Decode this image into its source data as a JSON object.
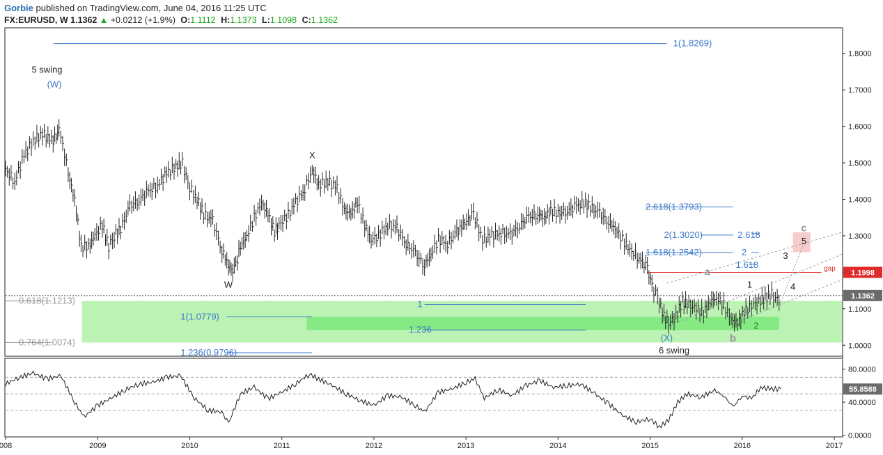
{
  "header": {
    "author": "Gorbie",
    "published": "published on TradingView.com, June 04, 2016 11:25 UTC",
    "symbol": "FX:EURUSD, W",
    "last": "1.1362",
    "change": "+0.0212 (+1.9%)",
    "open_label": "O:",
    "open": "1.1112",
    "high_label": "H:",
    "high": "1.1373",
    "low_label": "L:",
    "low": "1.1098",
    "close_label": "C:",
    "close": "1.1362"
  },
  "colors": {
    "blue_label": "#3a78c9",
    "green_zone": "#7ee87e",
    "price_badge": "#6b6b6b",
    "red_level": "#e02b2b"
  },
  "chart_data": [
    {
      "type": "bar",
      "title": "FX:EURUSD, W",
      "ylim": [
        0.97,
        1.87
      ],
      "y_ticks": [
        "1.0000",
        "1.1000",
        "1.2000",
        "1.3000",
        "1.4000",
        "1.5000",
        "1.6000",
        "1.7000",
        "1.8000"
      ],
      "x_ticks": [
        "008",
        "2009",
        "2010",
        "2011",
        "2012",
        "2013",
        "2014",
        "2015",
        "2016",
        "2017"
      ],
      "series": [
        {
          "values": [
            [
              2008.0,
              1.48
            ],
            [
              2008.1,
              1.45
            ],
            [
              2008.2,
              1.52
            ],
            [
              2008.3,
              1.56
            ],
            [
              2008.4,
              1.58
            ],
            [
              2008.5,
              1.56
            ],
            [
              2008.55,
              1.57
            ],
            [
              2008.58,
              1.59
            ],
            [
              2008.62,
              1.55
            ],
            [
              2008.68,
              1.47
            ],
            [
              2008.75,
              1.4
            ],
            [
              2008.82,
              1.27
            ],
            [
              2008.9,
              1.27
            ],
            [
              2008.97,
              1.3
            ],
            [
              2009.05,
              1.33
            ],
            [
              2009.12,
              1.27
            ],
            [
              2009.18,
              1.3
            ],
            [
              2009.25,
              1.32
            ],
            [
              2009.35,
              1.38
            ],
            [
              2009.45,
              1.4
            ],
            [
              2009.55,
              1.42
            ],
            [
              2009.65,
              1.44
            ],
            [
              2009.75,
              1.47
            ],
            [
              2009.85,
              1.49
            ],
            [
              2009.92,
              1.5
            ],
            [
              2009.98,
              1.44
            ],
            [
              2010.08,
              1.4
            ],
            [
              2010.15,
              1.36
            ],
            [
              2010.25,
              1.34
            ],
            [
              2010.35,
              1.26
            ],
            [
              2010.42,
              1.22
            ],
            [
              2010.45,
              1.2
            ],
            [
              2010.5,
              1.22
            ],
            [
              2010.55,
              1.27
            ],
            [
              2010.62,
              1.3
            ],
            [
              2010.7,
              1.35
            ],
            [
              2010.78,
              1.39
            ],
            [
              2010.85,
              1.36
            ],
            [
              2010.92,
              1.31
            ],
            [
              2010.97,
              1.33
            ],
            [
              2011.05,
              1.35
            ],
            [
              2011.15,
              1.39
            ],
            [
              2011.25,
              1.43
            ],
            [
              2011.33,
              1.48
            ],
            [
              2011.4,
              1.44
            ],
            [
              2011.5,
              1.45
            ],
            [
              2011.6,
              1.43
            ],
            [
              2011.68,
              1.37
            ],
            [
              2011.75,
              1.36
            ],
            [
              2011.82,
              1.39
            ],
            [
              2011.9,
              1.33
            ],
            [
              2011.97,
              1.29
            ],
            [
              2012.05,
              1.3
            ],
            [
              2012.15,
              1.33
            ],
            [
              2012.25,
              1.32
            ],
            [
              2012.35,
              1.28
            ],
            [
              2012.45,
              1.25
            ],
            [
              2012.55,
              1.22
            ],
            [
              2012.62,
              1.25
            ],
            [
              2012.7,
              1.29
            ],
            [
              2012.8,
              1.28
            ],
            [
              2012.9,
              1.31
            ],
            [
              2012.97,
              1.33
            ],
            [
              2013.08,
              1.36
            ],
            [
              2013.18,
              1.29
            ],
            [
              2013.28,
              1.3
            ],
            [
              2013.38,
              1.31
            ],
            [
              2013.48,
              1.3
            ],
            [
              2013.58,
              1.33
            ],
            [
              2013.68,
              1.35
            ],
            [
              2013.78,
              1.36
            ],
            [
              2013.85,
              1.35
            ],
            [
              2013.92,
              1.37
            ],
            [
              2014.0,
              1.36
            ],
            [
              2014.1,
              1.37
            ],
            [
              2014.2,
              1.38
            ],
            [
              2014.28,
              1.39
            ],
            [
              2014.35,
              1.38
            ],
            [
              2014.45,
              1.36
            ],
            [
              2014.55,
              1.34
            ],
            [
              2014.62,
              1.32
            ],
            [
              2014.7,
              1.29
            ],
            [
              2014.78,
              1.26
            ],
            [
              2014.88,
              1.24
            ],
            [
              2014.97,
              1.21
            ],
            [
              2015.02,
              1.16
            ],
            [
              2015.08,
              1.13
            ],
            [
              2015.15,
              1.08
            ],
            [
              2015.2,
              1.06
            ],
            [
              2015.28,
              1.08
            ],
            [
              2015.35,
              1.12
            ],
            [
              2015.42,
              1.11
            ],
            [
              2015.5,
              1.1
            ],
            [
              2015.58,
              1.09
            ],
            [
              2015.65,
              1.12
            ],
            [
              2015.72,
              1.13
            ],
            [
              2015.8,
              1.11
            ],
            [
              2015.88,
              1.07
            ],
            [
              2015.95,
              1.06
            ],
            [
              2016.02,
              1.09
            ],
            [
              2016.1,
              1.11
            ],
            [
              2016.18,
              1.12
            ],
            [
              2016.25,
              1.13
            ],
            [
              2016.32,
              1.14
            ],
            [
              2016.38,
              1.12
            ],
            [
              2016.42,
              1.136
            ]
          ]
        }
      ],
      "annotations": [
        {
          "text": "5 swing",
          "x": 2008.45,
          "y": 1.755
        },
        {
          "text": "(W)",
          "x": 2008.53,
          "y": 1.715
        },
        {
          "text": "X",
          "x": 2011.33,
          "y": 1.52
        },
        {
          "text": "W",
          "x": 2010.42,
          "y": 1.165
        },
        {
          "text": "(X)",
          "x": 2015.18,
          "y": 1.02
        },
        {
          "text": "6 swing",
          "x": 2015.26,
          "y": 0.985
        },
        {
          "text": "a",
          "x": 2015.62,
          "y": 1.2
        },
        {
          "text": "b",
          "x": 2015.9,
          "y": 1.018
        },
        {
          "text": "c",
          "x": 2016.67,
          "y": 1.32
        },
        {
          "text": "1",
          "x": 2016.08,
          "y": 1.165
        },
        {
          "text": "2",
          "x": 2016.15,
          "y": 1.053
        },
        {
          "text": "3",
          "x": 2016.47,
          "y": 1.245
        },
        {
          "text": "4",
          "x": 2016.55,
          "y": 1.16
        },
        {
          "text": "5",
          "x": 2016.67,
          "y": 1.285
        },
        {
          "text": "1(1.8269)",
          "x": 2015.25,
          "y": 1.8269
        },
        {
          "text": "2.618(1.3793)",
          "x": 2014.95,
          "y": 1.3793
        },
        {
          "text": "2(1.3020)",
          "x": 2015.15,
          "y": 1.302
        },
        {
          "text": "1.618(1.2542)",
          "x": 2014.95,
          "y": 1.2542
        },
        {
          "text": "2.618",
          "x": 2015.95,
          "y": 1.302
        },
        {
          "text": "2",
          "x": 2016.02,
          "y": 1.2542
        },
        {
          "text": "1.618",
          "x": 2015.93,
          "y": 1.22
        },
        {
          "text": "gap",
          "x": 2016.95,
          "y": 1.212
        },
        {
          "text": "0.618(1.1213)",
          "x": 2008.45,
          "y": 1.1213
        },
        {
          "text": "0.764(1.0074)",
          "x": 2008.45,
          "y": 1.0074
        },
        {
          "text": "1(1.0779)",
          "x": 2009.9,
          "y": 1.0779
        },
        {
          "text": "1.236(0.9796)",
          "x": 2009.9,
          "y": 0.9796
        },
        {
          "text": "1",
          "x": 2012.5,
          "y": 1.112
        },
        {
          "text": "1.236",
          "x": 2012.38,
          "y": 1.042
        }
      ],
      "badges": [
        "1.1998",
        "1.1362"
      ]
    },
    {
      "type": "line",
      "ylim": [
        -0.02,
        0.93
      ],
      "y_ticks": [
        "0.0000",
        "40.0000",
        "80.0000"
      ],
      "series": [
        {
          "values": [
            [
              2008.0,
              0.62
            ],
            [
              2008.15,
              0.7
            ],
            [
              2008.3,
              0.75
            ],
            [
              2008.45,
              0.68
            ],
            [
              2008.6,
              0.72
            ],
            [
              2008.75,
              0.4
            ],
            [
              2008.85,
              0.22
            ],
            [
              2009.0,
              0.36
            ],
            [
              2009.15,
              0.45
            ],
            [
              2009.3,
              0.55
            ],
            [
              2009.45,
              0.62
            ],
            [
              2009.6,
              0.64
            ],
            [
              2009.75,
              0.7
            ],
            [
              2009.9,
              0.72
            ],
            [
              2010.05,
              0.45
            ],
            [
              2010.2,
              0.3
            ],
            [
              2010.35,
              0.28
            ],
            [
              2010.42,
              0.14
            ],
            [
              2010.55,
              0.5
            ],
            [
              2010.7,
              0.58
            ],
            [
              2010.85,
              0.44
            ],
            [
              2011.0,
              0.52
            ],
            [
              2011.15,
              0.62
            ],
            [
              2011.3,
              0.74
            ],
            [
              2011.4,
              0.68
            ],
            [
              2011.55,
              0.6
            ],
            [
              2011.7,
              0.5
            ],
            [
              2011.85,
              0.42
            ],
            [
              2012.0,
              0.36
            ],
            [
              2012.15,
              0.48
            ],
            [
              2012.3,
              0.46
            ],
            [
              2012.45,
              0.36
            ],
            [
              2012.55,
              0.28
            ],
            [
              2012.7,
              0.52
            ],
            [
              2012.85,
              0.56
            ],
            [
              2013.0,
              0.64
            ],
            [
              2013.1,
              0.68
            ],
            [
              2013.2,
              0.45
            ],
            [
              2013.35,
              0.55
            ],
            [
              2013.5,
              0.48
            ],
            [
              2013.65,
              0.6
            ],
            [
              2013.8,
              0.66
            ],
            [
              2013.95,
              0.58
            ],
            [
              2014.1,
              0.6
            ],
            [
              2014.25,
              0.62
            ],
            [
              2014.4,
              0.5
            ],
            [
              2014.55,
              0.38
            ],
            [
              2014.7,
              0.24
            ],
            [
              2014.85,
              0.16
            ],
            [
              2015.0,
              0.2
            ],
            [
              2015.1,
              0.1
            ],
            [
              2015.2,
              0.18
            ],
            [
              2015.3,
              0.4
            ],
            [
              2015.4,
              0.5
            ],
            [
              2015.55,
              0.46
            ],
            [
              2015.7,
              0.54
            ],
            [
              2015.8,
              0.48
            ],
            [
              2015.9,
              0.34
            ],
            [
              2016.0,
              0.48
            ],
            [
              2016.1,
              0.44
            ],
            [
              2016.2,
              0.58
            ],
            [
              2016.3,
              0.56
            ],
            [
              2016.42,
              0.558588
            ]
          ]
        }
      ],
      "levels": [
        0.3,
        0.5,
        0.7
      ],
      "badges": [
        "55.8588"
      ]
    }
  ]
}
